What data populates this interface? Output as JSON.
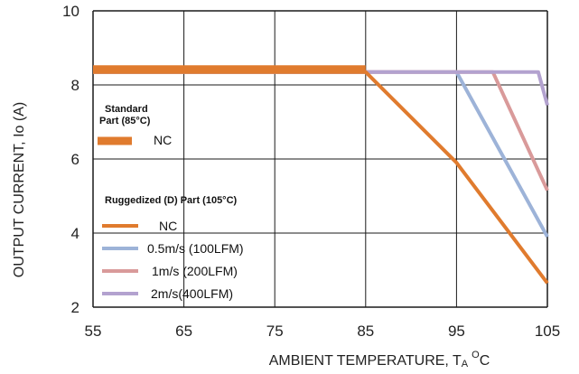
{
  "chart_data": {
    "type": "line",
    "xlabel": "AMBIENT TEMPERATURE, T",
    "xlabel_sub": "A",
    "xlabel_unit_sup": "O",
    "xlabel_unit": "C",
    "ylabel": "OUTPUT CURRENT, Io  (A)",
    "xlim": [
      55,
      105
    ],
    "ylim": [
      2,
      10
    ],
    "x_ticks": [
      55,
      65,
      75,
      85,
      95,
      105
    ],
    "y_ticks": [
      2,
      4,
      6,
      8,
      10
    ],
    "grid": true,
    "legend_groups": [
      {
        "title_line1": "Standard",
        "title_line2": "Part (85°C)"
      },
      {
        "title_line1": "Ruggedized (D)  Part (105°C)"
      }
    ],
    "series": [
      {
        "name": "0.5m/s (100LFM)",
        "group": 1,
        "color": "#9db3d8",
        "x": [
          55,
          95,
          105
        ],
        "y": [
          8.35,
          8.35,
          3.9
        ]
      },
      {
        "name": "1m/s  (200LFM)",
        "group": 1,
        "color": "#d99a9a",
        "x": [
          55,
          99,
          105
        ],
        "y": [
          8.35,
          8.35,
          5.15
        ]
      },
      {
        "name": "2m/s(400LFM)",
        "group": 1,
        "color": "#b3a2cf",
        "x": [
          55,
          104,
          105
        ],
        "y": [
          8.35,
          8.35,
          7.45
        ]
      },
      {
        "name": "NC",
        "group": 1,
        "color": "#e07b2e",
        "x": [
          55,
          85,
          95,
          105
        ],
        "y": [
          8.35,
          8.35,
          5.9,
          2.65
        ]
      },
      {
        "name": "NC",
        "group": 0,
        "color": "#e07b2e",
        "x": [
          55,
          85
        ],
        "y": [
          8.42,
          8.42
        ]
      }
    ]
  }
}
